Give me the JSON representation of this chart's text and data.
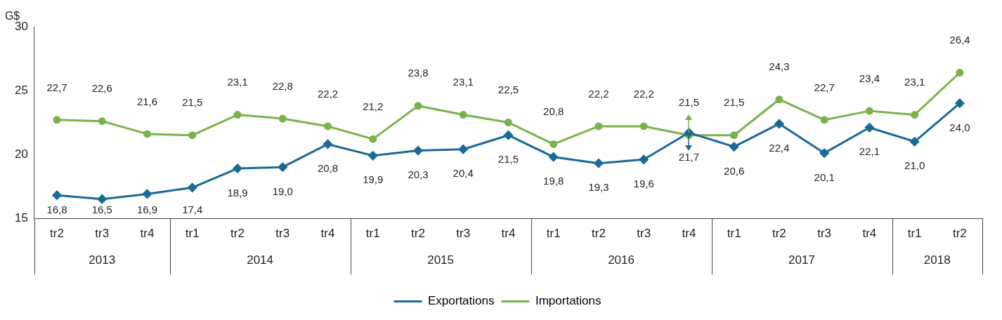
{
  "chart_data": {
    "type": "line",
    "ylabel": "G$",
    "categories": [
      "tr2",
      "tr3",
      "tr4",
      "tr1",
      "tr2",
      "tr3",
      "tr4",
      "tr1",
      "tr2",
      "tr3",
      "tr4",
      "tr1",
      "tr2",
      "tr3",
      "tr4",
      "tr1",
      "tr2",
      "tr3",
      "tr4",
      "tr1",
      "tr2"
    ],
    "annotations": [
      "2013",
      "2014",
      "2015",
      "2016",
      "2017",
      "2018"
    ],
    "series": [
      {
        "name": "Exportations",
        "color": "#1a6a96",
        "marker": "diamond",
        "values": [
          16.8,
          16.5,
          16.9,
          17.4,
          18.9,
          19.0,
          20.8,
          19.9,
          20.3,
          20.4,
          21.5,
          19.8,
          19.3,
          19.6,
          21.7,
          20.6,
          22.4,
          20.1,
          22.1,
          21.0,
          24.0
        ],
        "value_labels": [
          "16,8",
          "16,5",
          "16,9",
          "17,4",
          "18,9",
          "19,0",
          "20,8",
          "19,9",
          "20,3",
          "20,4",
          "21,5",
          "19,8",
          "19,3",
          "19,6",
          "21,7",
          "20,6",
          "22,4",
          "20,1",
          "22,1",
          "21,0",
          "24,0"
        ]
      },
      {
        "name": "Importations",
        "color": "#79b34a",
        "marker": "circle",
        "values": [
          22.7,
          22.6,
          21.6,
          21.5,
          23.1,
          22.8,
          22.2,
          21.2,
          23.8,
          23.1,
          22.5,
          20.8,
          22.2,
          22.2,
          21.5,
          21.5,
          24.3,
          22.7,
          23.4,
          23.1,
          26.4
        ],
        "value_labels": [
          "22,7",
          "22,6",
          "21,6",
          "21,5",
          "23,1",
          "22,8",
          "22,2",
          "21,2",
          "23,8",
          "23,1",
          "22,5",
          "20,8",
          "22,2",
          "22,2",
          "21,5",
          "21,5",
          "24,3",
          "22,7",
          "23,4",
          "23,1",
          "26,4"
        ]
      }
    ],
    "ylim": [
      15,
      30
    ],
    "yticks": [
      15,
      20,
      25,
      30
    ],
    "grid": false,
    "legend": "bottom",
    "line_style": "solid"
  }
}
